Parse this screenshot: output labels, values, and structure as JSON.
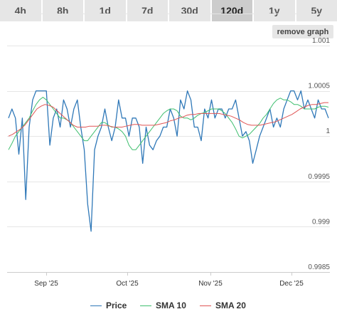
{
  "tabs": [
    {
      "label": "4h",
      "active": false
    },
    {
      "label": "8h",
      "active": false
    },
    {
      "label": "1d",
      "active": false
    },
    {
      "label": "7d",
      "active": false
    },
    {
      "label": "30d",
      "active": false
    },
    {
      "label": "120d",
      "active": true
    },
    {
      "label": "1y",
      "active": false
    },
    {
      "label": "5y",
      "active": false
    }
  ],
  "remove_graph_label": "remove graph",
  "chart_data": {
    "type": "line",
    "title": "",
    "xlabel": "",
    "ylabel": "",
    "ylim": [
      0.9985,
      1.001
    ],
    "yticks": [
      "0.9985",
      "0.999",
      "0.9995",
      "1",
      "1.0005",
      "1.001"
    ],
    "xticks": [
      "Sep '25",
      "Oct '25",
      "Nov '25",
      "Dec '25"
    ],
    "grid": true,
    "legend_position": "bottom",
    "series": [
      {
        "name": "Price",
        "color": "#2f78b8",
        "values": [
          1.0002,
          1.0003,
          1.0002,
          0.9998,
          1.0002,
          0.9993,
          1.0001,
          1.0004,
          1.0005,
          1.0005,
          1.0005,
          1.0005,
          0.9999,
          1.0002,
          1.0003,
          1.0001,
          1.0004,
          1.0003,
          1.0001,
          1.0003,
          1.0004,
          1.0001,
          0.99985,
          0.99925,
          0.99895,
          0.99985,
          1.0,
          1.0001,
          1.0003,
          1.0001,
          0.99995,
          1.0001,
          1.0004,
          1.0002,
          1.0002,
          1.0,
          1.0002,
          1.0002,
          1.0001,
          0.9997,
          1.0001,
          0.9999,
          0.99985,
          0.99995,
          1.0,
          1.0001,
          1.0001,
          1.0003,
          1.0002,
          1.0,
          1.0004,
          1.0003,
          1.0005,
          1.0004,
          1.0001,
          1.0001,
          0.99995,
          1.0003,
          1.0002,
          1.0004,
          1.0002,
          1.0003,
          1.0003,
          1.0002,
          1.0003,
          1.0003,
          1.0004,
          1.0002,
          1.0,
          1.00005,
          0.99995,
          0.9997,
          0.99985,
          1.0,
          1.0001,
          1.0002,
          1.0003,
          1.0001,
          1.0002,
          1.0001,
          1.0003,
          1.0004,
          1.0005,
          1.0005,
          1.0004,
          1.0005,
          1.0003,
          1.0004,
          1.0003,
          1.0002,
          1.0004,
          1.0003,
          1.0003,
          1.0002
        ]
      },
      {
        "name": "SMA 10",
        "color": "#3fbf6f",
        "values": [
          0.99985,
          0.99992,
          1.0,
          1.00005,
          1.0001,
          1.00015,
          1.0002,
          1.00028,
          1.00035,
          1.0004,
          1.00043,
          1.0004,
          1.00035,
          1.0003,
          1.00025,
          1.0002,
          1.0002,
          1.00018,
          1.00015,
          1.0001,
          1.00005,
          1.0,
          0.99995,
          0.99995,
          1.0,
          1.00005,
          1.0001,
          1.00015,
          1.00015,
          1.00012,
          1.0001,
          1.0001,
          1.00008,
          1.00005,
          1.0,
          0.9999,
          0.99985,
          0.99985,
          0.9999,
          0.99995,
          1.0,
          1.00005,
          1.0001,
          1.00015,
          1.0002,
          1.00025,
          1.00028,
          1.0003,
          1.0003,
          1.00028,
          1.00022,
          1.0002,
          1.0002,
          1.00018,
          1.0002,
          1.00023,
          1.00025,
          1.00026,
          1.00028,
          1.0003,
          1.0003,
          1.0003,
          1.00028,
          1.00025,
          1.0002,
          1.00015,
          1.00008,
          1.0,
          0.99998,
          1.0,
          1.00002,
          1.00006,
          1.0001,
          1.00014,
          1.0002,
          1.00024,
          1.0003,
          1.00036,
          1.0004,
          1.00042,
          1.0004,
          1.0004,
          1.00038,
          1.00035,
          1.00035,
          1.00033,
          1.0003,
          1.0003,
          1.0003,
          1.0003,
          1.00032,
          1.00033,
          1.00033,
          1.00032
        ]
      },
      {
        "name": "SMA 20",
        "color": "#e05555",
        "values": [
          1.0,
          1.00002,
          1.00005,
          1.00008,
          1.00012,
          1.00018,
          1.00024,
          1.0003,
          1.00033,
          1.00035,
          1.00034,
          1.00032,
          1.00028,
          1.00024,
          1.0002,
          1.00016,
          1.00012,
          1.0001,
          1.0001,
          1.0001,
          1.00011,
          1.00011,
          1.00011,
          1.00012,
          1.00012,
          1.00011,
          1.0001,
          1.0001,
          1.0001,
          1.00011,
          1.00012,
          1.00013,
          1.00013,
          1.00012,
          1.00012,
          1.00012,
          1.00012,
          1.00013,
          1.00014,
          1.00015,
          1.00017,
          1.00018,
          1.0002,
          1.00021,
          1.00023,
          1.00024,
          1.00024,
          1.00025,
          1.00025,
          1.00025,
          1.00025,
          1.00025,
          1.00025,
          1.00024,
          1.00023,
          1.00022,
          1.0002,
          1.00018,
          1.00015,
          1.00013,
          1.00012,
          1.00012,
          1.00012,
          1.00013,
          1.00014,
          1.00015,
          1.00016,
          1.00018,
          1.0002,
          1.00022,
          1.00024,
          1.00027,
          1.0003,
          1.00032,
          1.00034,
          1.00035,
          1.00035,
          1.00036,
          1.00037,
          1.00037
        ]
      }
    ]
  }
}
